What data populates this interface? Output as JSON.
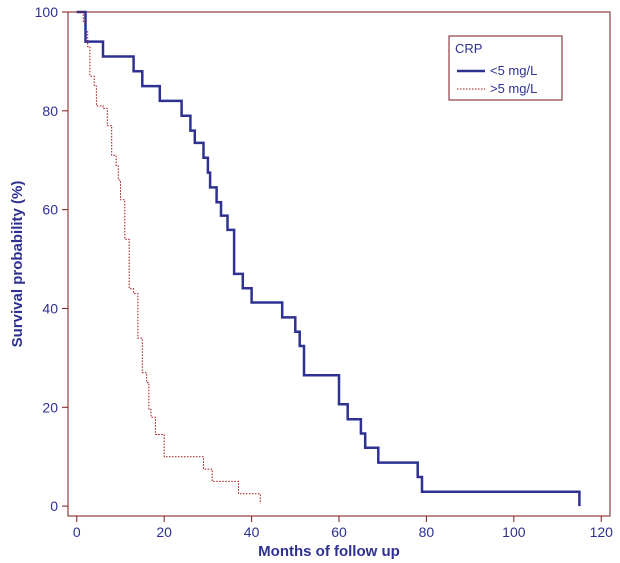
{
  "colors": {
    "frame": "#7a1a1a",
    "text": "#2e3192",
    "series_low": "#2e3192",
    "series_high": "#a01010"
  },
  "chart_data": {
    "type": "line",
    "step": true,
    "title": "",
    "xlabel": "Months of follow up",
    "ylabel": "Survival probability (%)",
    "xlim": [
      -2,
      122
    ],
    "ylim": [
      -2,
      100
    ],
    "xticks": [
      0,
      20,
      40,
      60,
      80,
      100,
      120
    ],
    "yticks": [
      0,
      20,
      40,
      60,
      80,
      100
    ],
    "grid": false,
    "legend": {
      "title": "CRP",
      "position": "top-right"
    },
    "series": [
      {
        "name": "<5 mg/L",
        "style": "solid",
        "points": [
          [
            0,
            100
          ],
          [
            2,
            100
          ],
          [
            2,
            94
          ],
          [
            6,
            94
          ],
          [
            6,
            91
          ],
          [
            13,
            91
          ],
          [
            13,
            88
          ],
          [
            15,
            88
          ],
          [
            15,
            85
          ],
          [
            19,
            85
          ],
          [
            19,
            82
          ],
          [
            24,
            82
          ],
          [
            24,
            79
          ],
          [
            26,
            79
          ],
          [
            26,
            76
          ],
          [
            27,
            76
          ],
          [
            27,
            73.5
          ],
          [
            29,
            73.5
          ],
          [
            29,
            70.5
          ],
          [
            30,
            70.5
          ],
          [
            30,
            67.5
          ],
          [
            30.5,
            67.5
          ],
          [
            30.5,
            64.5
          ],
          [
            32,
            64.5
          ],
          [
            32,
            61.5
          ],
          [
            33,
            61.5
          ],
          [
            33,
            58.8
          ],
          [
            34.5,
            58.8
          ],
          [
            34.5,
            55.9
          ],
          [
            36,
            55.9
          ],
          [
            36,
            47
          ],
          [
            38,
            47
          ],
          [
            38,
            44.1
          ],
          [
            40,
            44.1
          ],
          [
            40,
            41.2
          ],
          [
            47,
            41.2
          ],
          [
            47,
            38.2
          ],
          [
            50,
            38.2
          ],
          [
            50,
            35.3
          ],
          [
            51,
            35.3
          ],
          [
            51,
            32.4
          ],
          [
            52,
            32.4
          ],
          [
            52,
            26.5
          ],
          [
            60,
            26.5
          ],
          [
            60,
            20.6
          ],
          [
            62,
            20.6
          ],
          [
            62,
            17.6
          ],
          [
            65,
            17.6
          ],
          [
            65,
            14.7
          ],
          [
            66,
            14.7
          ],
          [
            66,
            11.8
          ],
          [
            69,
            11.8
          ],
          [
            69,
            8.8
          ],
          [
            78,
            8.8
          ],
          [
            78,
            5.9
          ],
          [
            79,
            5.9
          ],
          [
            79,
            2.9
          ],
          [
            115,
            2.9
          ],
          [
            115,
            0
          ]
        ]
      },
      {
        "name": ">5 mg/L",
        "style": "dotted",
        "points": [
          [
            0,
            100
          ],
          [
            1.5,
            100
          ],
          [
            1.5,
            98
          ],
          [
            2,
            98
          ],
          [
            2,
            96
          ],
          [
            2.5,
            96
          ],
          [
            2.5,
            93
          ],
          [
            3,
            93
          ],
          [
            3,
            87
          ],
          [
            4,
            87
          ],
          [
            4,
            85
          ],
          [
            4.5,
            85
          ],
          [
            4.5,
            81
          ],
          [
            6,
            81
          ],
          [
            6,
            80.5
          ],
          [
            7,
            80.5
          ],
          [
            7,
            77
          ],
          [
            8,
            77
          ],
          [
            8,
            71
          ],
          [
            9,
            71
          ],
          [
            9,
            69
          ],
          [
            9.5,
            69
          ],
          [
            9.5,
            66
          ],
          [
            10,
            66
          ],
          [
            10,
            62
          ],
          [
            11,
            62
          ],
          [
            11,
            54
          ],
          [
            12,
            54
          ],
          [
            12,
            44
          ],
          [
            13,
            44
          ],
          [
            13,
            43
          ],
          [
            14,
            43
          ],
          [
            14,
            34
          ],
          [
            15,
            34
          ],
          [
            15,
            27
          ],
          [
            16,
            27
          ],
          [
            16,
            25
          ],
          [
            16.5,
            25
          ],
          [
            16.5,
            19.5
          ],
          [
            17,
            19.5
          ],
          [
            17,
            18
          ],
          [
            18,
            18
          ],
          [
            18,
            14.5
          ],
          [
            20,
            14.5
          ],
          [
            20,
            10
          ],
          [
            29,
            10
          ],
          [
            29,
            7.5
          ],
          [
            31,
            7.5
          ],
          [
            31,
            5
          ],
          [
            37,
            5
          ],
          [
            37,
            2.5
          ],
          [
            42,
            2.5
          ],
          [
            42,
            0.5
          ]
        ]
      }
    ]
  }
}
